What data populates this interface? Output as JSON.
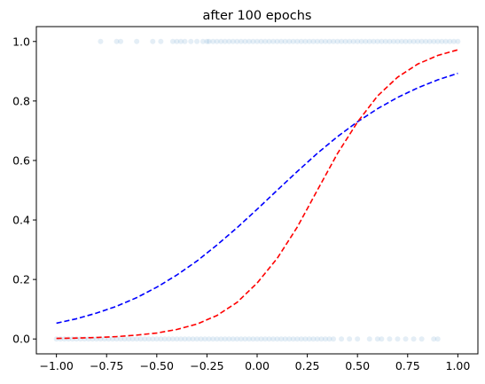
{
  "chart_data": {
    "type": "scatter",
    "title": "after 100 epochs",
    "xlabel": "",
    "ylabel": "",
    "xlim": [
      -1.1,
      1.1
    ],
    "ylim": [
      -0.05,
      1.05
    ],
    "grid": false,
    "legend": "none",
    "x_ticks": [
      -1.0,
      -0.75,
      -0.5,
      -0.25,
      0.0,
      0.25,
      0.5,
      0.75,
      1.0
    ],
    "x_tick_labels": [
      "−1.00",
      "−0.75",
      "−0.50",
      "−0.25",
      "0.00",
      "0.25",
      "0.50",
      "0.75",
      "1.00"
    ],
    "y_ticks": [
      0.0,
      0.2,
      0.4,
      0.6,
      0.8,
      1.0
    ],
    "y_tick_labels": [
      "0.0",
      "0.2",
      "0.4",
      "0.6",
      "0.8",
      "1.0"
    ],
    "scatter": {
      "color": "#1f77b4",
      "alpha": 0.12,
      "points": [
        {
          "x": -0.78,
          "y": 1
        },
        {
          "x": -0.7,
          "y": 1
        },
        {
          "x": -0.68,
          "y": 1
        },
        {
          "x": -0.6,
          "y": 1
        },
        {
          "x": -0.52,
          "y": 1
        },
        {
          "x": -0.48,
          "y": 1
        },
        {
          "x": -0.42,
          "y": 1
        },
        {
          "x": -0.4,
          "y": 1
        },
        {
          "x": -0.38,
          "y": 1
        },
        {
          "x": -0.36,
          "y": 1
        },
        {
          "x": -0.33,
          "y": 1
        },
        {
          "x": -0.3,
          "y": 1
        },
        {
          "x": -0.27,
          "y": 1
        },
        {
          "x": -0.25,
          "y": 1
        },
        {
          "x": -0.24,
          "y": 1
        },
        {
          "x": -0.22,
          "y": 1
        },
        {
          "x": -0.2,
          "y": 1
        },
        {
          "x": -0.18,
          "y": 1
        },
        {
          "x": -0.16,
          "y": 1
        },
        {
          "x": -0.14,
          "y": 1
        },
        {
          "x": -0.12,
          "y": 1
        },
        {
          "x": -0.1,
          "y": 1
        },
        {
          "x": -0.08,
          "y": 1
        },
        {
          "x": -0.06,
          "y": 1
        },
        {
          "x": -0.04,
          "y": 1
        },
        {
          "x": -0.02,
          "y": 1
        },
        {
          "x": 0.0,
          "y": 1
        },
        {
          "x": 0.02,
          "y": 1
        },
        {
          "x": 0.04,
          "y": 1
        },
        {
          "x": 0.06,
          "y": 1
        },
        {
          "x": 0.08,
          "y": 1
        },
        {
          "x": 0.1,
          "y": 1
        },
        {
          "x": 0.12,
          "y": 1
        },
        {
          "x": 0.14,
          "y": 1
        },
        {
          "x": 0.16,
          "y": 1
        },
        {
          "x": 0.18,
          "y": 1
        },
        {
          "x": 0.2,
          "y": 1
        },
        {
          "x": 0.22,
          "y": 1
        },
        {
          "x": 0.24,
          "y": 1
        },
        {
          "x": 0.26,
          "y": 1
        },
        {
          "x": 0.28,
          "y": 1
        },
        {
          "x": 0.3,
          "y": 1
        },
        {
          "x": 0.32,
          "y": 1
        },
        {
          "x": 0.34,
          "y": 1
        },
        {
          "x": 0.36,
          "y": 1
        },
        {
          "x": 0.38,
          "y": 1
        },
        {
          "x": 0.4,
          "y": 1
        },
        {
          "x": 0.42,
          "y": 1
        },
        {
          "x": 0.44,
          "y": 1
        },
        {
          "x": 0.46,
          "y": 1
        },
        {
          "x": 0.48,
          "y": 1
        },
        {
          "x": 0.5,
          "y": 1
        },
        {
          "x": 0.52,
          "y": 1
        },
        {
          "x": 0.54,
          "y": 1
        },
        {
          "x": 0.56,
          "y": 1
        },
        {
          "x": 0.58,
          "y": 1
        },
        {
          "x": 0.6,
          "y": 1
        },
        {
          "x": 0.62,
          "y": 1
        },
        {
          "x": 0.64,
          "y": 1
        },
        {
          "x": 0.66,
          "y": 1
        },
        {
          "x": 0.68,
          "y": 1
        },
        {
          "x": 0.7,
          "y": 1
        },
        {
          "x": 0.72,
          "y": 1
        },
        {
          "x": 0.74,
          "y": 1
        },
        {
          "x": 0.76,
          "y": 1
        },
        {
          "x": 0.78,
          "y": 1
        },
        {
          "x": 0.8,
          "y": 1
        },
        {
          "x": 0.82,
          "y": 1
        },
        {
          "x": 0.84,
          "y": 1
        },
        {
          "x": 0.86,
          "y": 1
        },
        {
          "x": 0.88,
          "y": 1
        },
        {
          "x": 0.9,
          "y": 1
        },
        {
          "x": 0.92,
          "y": 1
        },
        {
          "x": 0.94,
          "y": 1
        },
        {
          "x": 0.96,
          "y": 1
        },
        {
          "x": 0.98,
          "y": 1
        },
        {
          "x": 1.0,
          "y": 1
        },
        {
          "x": -1.0,
          "y": 0
        },
        {
          "x": -0.98,
          "y": 0
        },
        {
          "x": -0.96,
          "y": 0
        },
        {
          "x": -0.94,
          "y": 0
        },
        {
          "x": -0.92,
          "y": 0
        },
        {
          "x": -0.9,
          "y": 0
        },
        {
          "x": -0.88,
          "y": 0
        },
        {
          "x": -0.86,
          "y": 0
        },
        {
          "x": -0.84,
          "y": 0
        },
        {
          "x": -0.82,
          "y": 0
        },
        {
          "x": -0.8,
          "y": 0
        },
        {
          "x": -0.78,
          "y": 0
        },
        {
          "x": -0.76,
          "y": 0
        },
        {
          "x": -0.74,
          "y": 0
        },
        {
          "x": -0.72,
          "y": 0
        },
        {
          "x": -0.7,
          "y": 0
        },
        {
          "x": -0.68,
          "y": 0
        },
        {
          "x": -0.66,
          "y": 0
        },
        {
          "x": -0.64,
          "y": 0
        },
        {
          "x": -0.62,
          "y": 0
        },
        {
          "x": -0.6,
          "y": 0
        },
        {
          "x": -0.58,
          "y": 0
        },
        {
          "x": -0.56,
          "y": 0
        },
        {
          "x": -0.54,
          "y": 0
        },
        {
          "x": -0.52,
          "y": 0
        },
        {
          "x": -0.5,
          "y": 0
        },
        {
          "x": -0.48,
          "y": 0
        },
        {
          "x": -0.46,
          "y": 0
        },
        {
          "x": -0.44,
          "y": 0
        },
        {
          "x": -0.42,
          "y": 0
        },
        {
          "x": -0.4,
          "y": 0
        },
        {
          "x": -0.38,
          "y": 0
        },
        {
          "x": -0.36,
          "y": 0
        },
        {
          "x": -0.34,
          "y": 0
        },
        {
          "x": -0.32,
          "y": 0
        },
        {
          "x": -0.3,
          "y": 0
        },
        {
          "x": -0.28,
          "y": 0
        },
        {
          "x": -0.26,
          "y": 0
        },
        {
          "x": -0.24,
          "y": 0
        },
        {
          "x": -0.22,
          "y": 0
        },
        {
          "x": -0.2,
          "y": 0
        },
        {
          "x": -0.18,
          "y": 0
        },
        {
          "x": -0.16,
          "y": 0
        },
        {
          "x": -0.14,
          "y": 0
        },
        {
          "x": -0.12,
          "y": 0
        },
        {
          "x": -0.1,
          "y": 0
        },
        {
          "x": -0.08,
          "y": 0
        },
        {
          "x": -0.06,
          "y": 0
        },
        {
          "x": -0.04,
          "y": 0
        },
        {
          "x": -0.02,
          "y": 0
        },
        {
          "x": 0.0,
          "y": 0
        },
        {
          "x": 0.02,
          "y": 0
        },
        {
          "x": 0.04,
          "y": 0
        },
        {
          "x": 0.06,
          "y": 0
        },
        {
          "x": 0.08,
          "y": 0
        },
        {
          "x": 0.1,
          "y": 0
        },
        {
          "x": 0.12,
          "y": 0
        },
        {
          "x": 0.14,
          "y": 0
        },
        {
          "x": 0.16,
          "y": 0
        },
        {
          "x": 0.18,
          "y": 0
        },
        {
          "x": 0.2,
          "y": 0
        },
        {
          "x": 0.22,
          "y": 0
        },
        {
          "x": 0.24,
          "y": 0
        },
        {
          "x": 0.26,
          "y": 0
        },
        {
          "x": 0.28,
          "y": 0
        },
        {
          "x": 0.3,
          "y": 0
        },
        {
          "x": 0.32,
          "y": 0
        },
        {
          "x": 0.34,
          "y": 0
        },
        {
          "x": 0.36,
          "y": 0
        },
        {
          "x": 0.38,
          "y": 0
        },
        {
          "x": 0.42,
          "y": 0
        },
        {
          "x": 0.46,
          "y": 0
        },
        {
          "x": 0.5,
          "y": 0
        },
        {
          "x": 0.56,
          "y": 0
        },
        {
          "x": 0.6,
          "y": 0
        },
        {
          "x": 0.62,
          "y": 0
        },
        {
          "x": 0.66,
          "y": 0
        },
        {
          "x": 0.7,
          "y": 0
        },
        {
          "x": 0.74,
          "y": 0
        },
        {
          "x": 0.78,
          "y": 0
        },
        {
          "x": 0.82,
          "y": 0
        },
        {
          "x": 0.88,
          "y": 0
        },
        {
          "x": 0.9,
          "y": 0
        }
      ]
    },
    "lines": [
      {
        "color": "#0000ff",
        "style": "dashed",
        "x": [
          -1.0,
          -0.9,
          -0.8,
          -0.7,
          -0.6,
          -0.5,
          -0.4,
          -0.3,
          -0.2,
          -0.1,
          0.0,
          0.1,
          0.2,
          0.3,
          0.4,
          0.5,
          0.6,
          0.7,
          0.8,
          0.9,
          1.0
        ],
        "y": [
          0.053,
          0.068,
          0.087,
          0.11,
          0.139,
          0.174,
          0.215,
          0.262,
          0.316,
          0.374,
          0.436,
          0.5,
          0.563,
          0.624,
          0.68,
          0.73,
          0.774,
          0.812,
          0.844,
          0.871,
          0.893
        ]
      },
      {
        "color": "#ff0000",
        "style": "dashed",
        "x": [
          -1.0,
          -0.9,
          -0.8,
          -0.7,
          -0.6,
          -0.5,
          -0.4,
          -0.3,
          -0.2,
          -0.1,
          0.0,
          0.1,
          0.2,
          0.3,
          0.4,
          0.5,
          0.6,
          0.7,
          0.8,
          0.9,
          1.0
        ],
        "y": [
          0.002,
          0.003,
          0.005,
          0.008,
          0.013,
          0.02,
          0.032,
          0.05,
          0.079,
          0.123,
          0.188,
          0.271,
          0.376,
          0.5,
          0.623,
          0.729,
          0.817,
          0.88,
          0.924,
          0.953,
          0.972
        ]
      }
    ]
  }
}
